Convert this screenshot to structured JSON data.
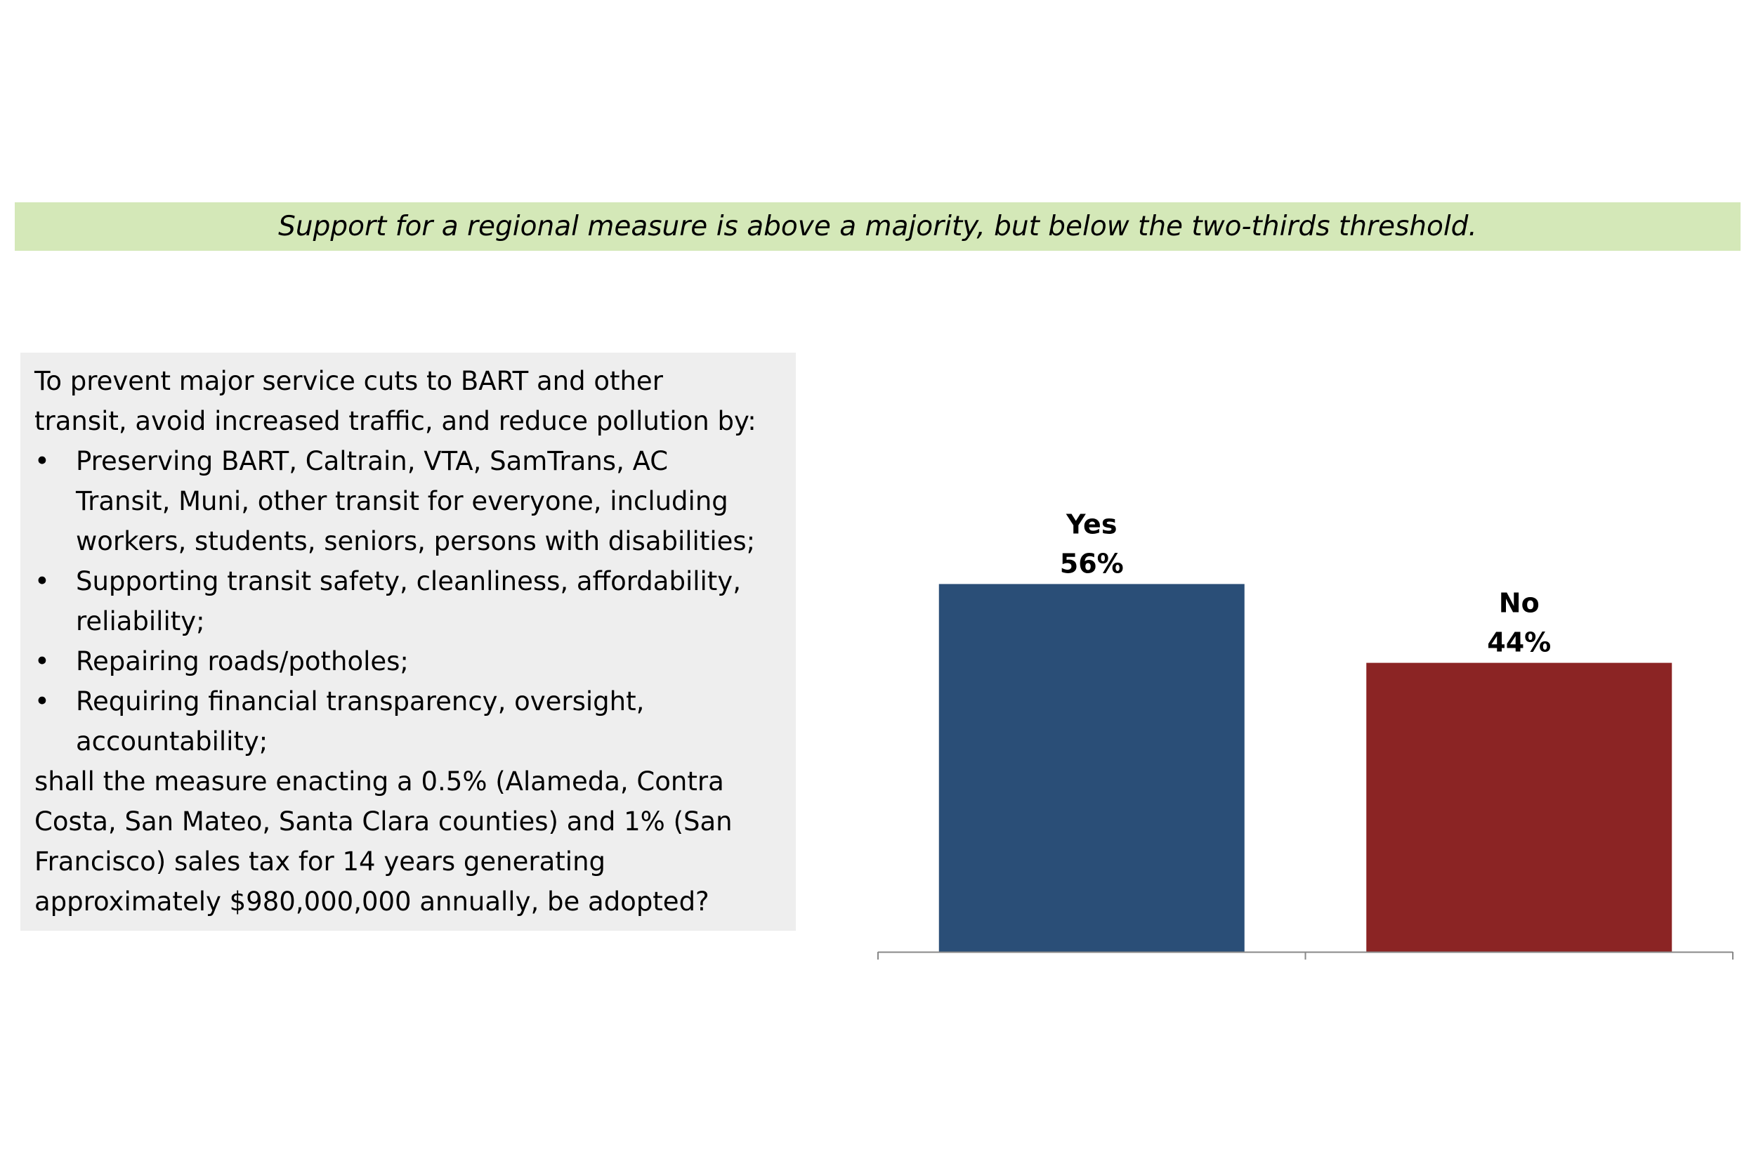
{
  "banner": {
    "text": "Support for a regional measure is above a majority, but below the two-thirds threshold.",
    "background": "#d4e8b8"
  },
  "question": {
    "intro": [
      "To prevent major service cuts to BART and other",
      "transit, avoid increased traffic, and reduce pollution by:"
    ],
    "bullets": [
      [
        "Preserving BART, Caltrain, VTA, SamTrans, AC",
        "Transit, Muni, other transit for everyone, including",
        "workers, students, seniors, persons with disabilities;"
      ],
      [
        "Supporting transit safety, cleanliness, affordability,",
        "reliability;"
      ],
      [
        "Repairing roads/potholes;"
      ],
      [
        "Requiring financial transparency, oversight,",
        "accountability;"
      ]
    ],
    "closing": [
      "shall the measure enacting a 0.5% (Alameda, Contra",
      "Costa, San Mateo, Santa Clara counties) and 1% (San",
      "Francisco) sales tax for 14 years generating",
      "approximately $980,000,000 annually, be adopted?"
    ],
    "background": "#eeeeee",
    "bullet_symbol": "•"
  },
  "chart_data": {
    "type": "bar",
    "categories": [
      "Yes",
      "No"
    ],
    "values": [
      56,
      44
    ],
    "value_labels": [
      "56%",
      "44%"
    ],
    "colors": [
      "#2a4e77",
      "#8b2424"
    ],
    "ylim": [
      0,
      100
    ],
    "title": "",
    "xlabel": "",
    "ylabel": "",
    "grid": false,
    "legend": "none"
  }
}
